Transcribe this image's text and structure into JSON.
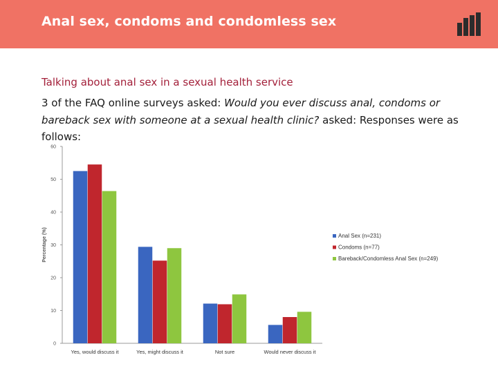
{
  "header": {
    "title": "Anal sex, condoms and condomless sex",
    "background": "#f07264",
    "logo_icon": "bar-chart-logo-icon"
  },
  "content": {
    "subtitle": "Talking about anal sex in a sexual health service",
    "intro_prefix": "3 of the FAQ online surveys asked: ",
    "question": "Would you ever discuss anal, condoms or bareback sex with someone at a sexual health clinic?",
    "intro_suffix": "  asked: Responses were as follows:"
  },
  "chart_data": {
    "type": "bar",
    "title": "",
    "xlabel": "",
    "ylabel": "Percentage (%)",
    "ylim": [
      0,
      60
    ],
    "yticks": [
      0,
      10,
      20,
      30,
      40,
      50,
      60
    ],
    "grid": false,
    "legend_position": "right",
    "categories": [
      "Yes, would discuss it",
      "Yes, might discuss it",
      "Not sure",
      "Would never discuss it"
    ],
    "series": [
      {
        "name": "Anal Sex (n=231)",
        "color": "#3a66c0",
        "values": [
          52.5,
          29.4,
          12.1,
          5.6
        ]
      },
      {
        "name": "Condoms (n=77)",
        "color": "#c0262d",
        "values": [
          54.5,
          25.2,
          11.9,
          8.0
        ]
      },
      {
        "name": "Bareback/Condomless Anal Sex (n=249)",
        "color": "#8ec63f",
        "values": [
          46.4,
          29.0,
          14.9,
          9.6
        ]
      }
    ]
  }
}
